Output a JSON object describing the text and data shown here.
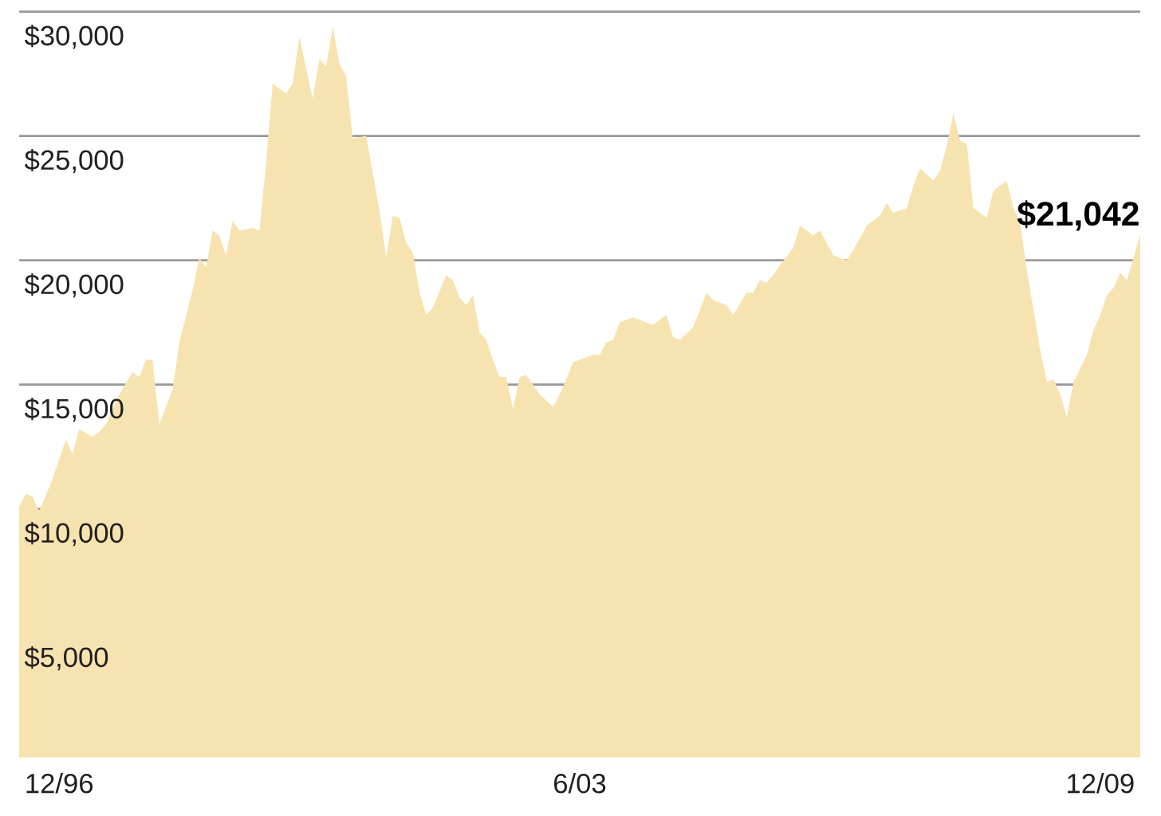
{
  "chart_data": {
    "type": "area",
    "color": "#f7e3b0",
    "x": [
      "1996-06",
      "1996-07",
      "1996-08",
      "1996-09",
      "1996-11",
      "1997-01",
      "1997-02",
      "1997-03",
      "1997-05",
      "1997-06",
      "1997-07",
      "1997-09",
      "1997-11",
      "1997-12",
      "1998-01",
      "1998-02",
      "1998-03",
      "1998-05",
      "1998-06",
      "1998-08",
      "1998-09",
      "1998-10",
      "1998-11",
      "1998-12",
      "1999-01",
      "1999-02",
      "1999-03",
      "1999-05",
      "1999-06",
      "1999-07",
      "1999-08",
      "1999-10",
      "1999-11",
      "1999-12",
      "2000-01",
      "2000-02",
      "2000-03",
      "2000-04",
      "2000-05",
      "2000-06",
      "2000-07",
      "2000-08",
      "2000-10",
      "2000-12",
      "2001-01",
      "2001-02",
      "2001-03",
      "2001-04",
      "2001-05",
      "2001-06",
      "2001-07",
      "2001-08",
      "2001-10",
      "2001-11",
      "2001-12",
      "2002-01",
      "2002-02",
      "2002-03",
      "2002-04",
      "2002-05",
      "2002-06",
      "2002-07",
      "2002-08",
      "2002-09",
      "2002-10",
      "2002-12",
      "2003-02",
      "2003-03",
      "2003-04",
      "2003-05",
      "2003-08",
      "2003-09",
      "2003-10",
      "2003-11",
      "2003-12",
      "2004-02",
      "2004-03",
      "2004-05",
      "2004-06",
      "2004-07",
      "2004-08",
      "2004-09",
      "2004-11",
      "2005-01",
      "2005-02",
      "2005-04",
      "2005-05",
      "2005-07",
      "2005-08",
      "2005-09",
      "2005-10",
      "2005-11",
      "2005-12",
      "2006-02",
      "2006-03",
      "2006-05",
      "2006-06",
      "2006-08",
      "2006-10",
      "2006-11",
      "2007-01",
      "2007-03",
      "2007-04",
      "2007-05",
      "2007-07",
      "2007-08",
      "2007-09",
      "2007-11",
      "2007-12",
      "2008-01",
      "2008-02",
      "2008-03",
      "2008-04",
      "2008-05",
      "2008-07",
      "2008-08",
      "2008-10",
      "2008-11",
      "2008-12",
      "2009-01",
      "2009-03",
      "2009-04",
      "2009-05",
      "2009-06",
      "2009-07",
      "2009-08",
      "2009-10",
      "2009-11",
      "2009-12",
      "2010-01",
      "2010-02",
      "2010-03",
      "2010-04",
      "2010-06"
    ],
    "values": [
      10100,
      10600,
      10500,
      9900,
      11200,
      12800,
      12200,
      13200,
      12900,
      13100,
      13400,
      14600,
      15500,
      15300,
      16000,
      16000,
      13400,
      14800,
      16700,
      18800,
      20100,
      19700,
      21200,
      21000,
      20200,
      21600,
      21200,
      21300,
      21200,
      23900,
      27100,
      26700,
      27100,
      29000,
      27700,
      26500,
      28100,
      27800,
      29400,
      27900,
      27400,
      24900,
      25000,
      22000,
      20100,
      21800,
      21700,
      20700,
      20300,
      18700,
      17800,
      18100,
      19400,
      19200,
      18500,
      18200,
      18600,
      17100,
      16800,
      16000,
      15300,
      15300,
      14000,
      15300,
      15400,
      14600,
      14100,
      14600,
      15200,
      15900,
      16200,
      16200,
      16700,
      16800,
      17500,
      17700,
      17600,
      17400,
      17600,
      17800,
      16900,
      16800,
      17300,
      18700,
      18400,
      18200,
      17800,
      18700,
      18700,
      19200,
      19100,
      19400,
      19800,
      20500,
      21400,
      21000,
      21200,
      20200,
      20000,
      20400,
      21400,
      21800,
      22300,
      21900,
      22100,
      23000,
      23700,
      23200,
      23600,
      24600,
      25900,
      24800,
      24700,
      22100,
      21700,
      22800,
      23200,
      22100,
      21500,
      19600,
      16400,
      15100,
      15200,
      14600,
      13700,
      15100,
      16200,
      17200,
      17800,
      18600,
      18900,
      19500,
      19200,
      21042
    ],
    "xlim": [
      "1996-06",
      "2010-06"
    ],
    "xticks": [
      {
        "value": "1996-12",
        "label": "12/96"
      },
      {
        "value": "2003-06",
        "label": "6/03"
      },
      {
        "value": "2009-12",
        "label": "12/09"
      }
    ],
    "ylim": [
      0,
      30000
    ],
    "yticks": [
      {
        "value": 5000,
        "label": "$5,000"
      },
      {
        "value": 10000,
        "label": "$10,000"
      },
      {
        "value": 15000,
        "label": "$15,000"
      },
      {
        "value": 20000,
        "label": "$20,000"
      },
      {
        "value": 25000,
        "label": "$25,000"
      },
      {
        "value": 30000,
        "label": "$30,000"
      }
    ],
    "grid": "y",
    "annotations": [
      {
        "text": "$21,042",
        "x": "2010-06",
        "y": 21042
      }
    ]
  }
}
